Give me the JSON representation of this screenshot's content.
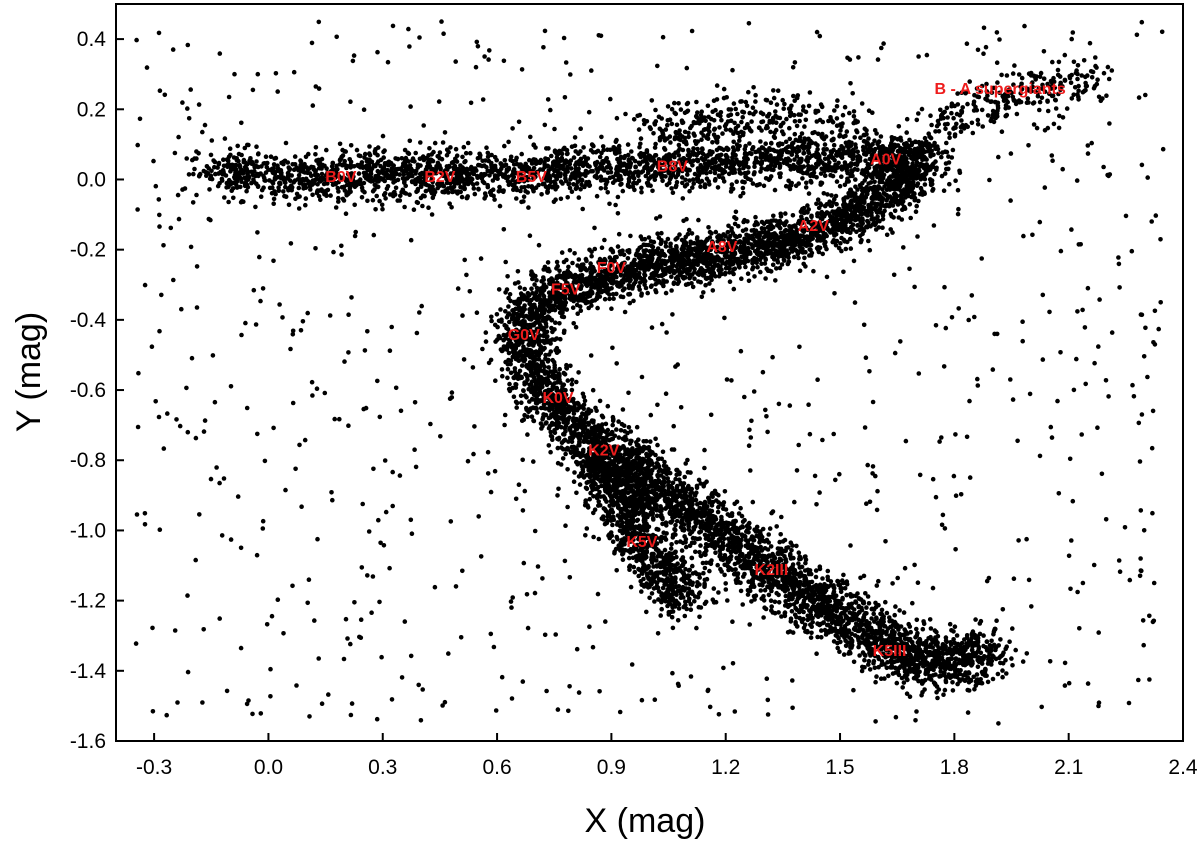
{
  "chart_data": {
    "type": "scatter",
    "title": "",
    "xlabel": "X  (mag)",
    "ylabel": "Y  (mag)",
    "xlim": [
      -0.4,
      2.4
    ],
    "ylim": [
      -1.6,
      0.5
    ],
    "xticks": [
      -0.3,
      0.0,
      0.3,
      0.6,
      0.9,
      1.2,
      1.5,
      1.8,
      2.1,
      2.4
    ],
    "xtick_labels": [
      "-0.3",
      "0.0",
      "0.3",
      "0.6",
      "0.9",
      "1.2",
      "1.5",
      "1.8",
      "2.1",
      "2.4"
    ],
    "yticks": [
      0.4,
      0.2,
      0.0,
      -0.2,
      -0.4,
      -0.6,
      -0.8,
      -1.0,
      -1.2,
      -1.4,
      -1.6
    ],
    "ytick_labels": [
      "0.4",
      "0.2",
      "0.0",
      "-0.2",
      "-0.4",
      "-0.6",
      "-0.8",
      "-1.0",
      "-1.2",
      "-1.4",
      "-1.6"
    ],
    "grid": false,
    "point_color": "#000000",
    "annotation_color": "#ee1c1c",
    "annotations": [
      {
        "text": "B0V",
        "x": 0.19,
        "y": 0.01
      },
      {
        "text": "B2V",
        "x": 0.45,
        "y": 0.01
      },
      {
        "text": "B5V",
        "x": 0.69,
        "y": 0.01
      },
      {
        "text": "B8V",
        "x": 1.06,
        "y": 0.04
      },
      {
        "text": "A0V",
        "x": 1.62,
        "y": 0.06
      },
      {
        "text": "A2V",
        "x": 1.43,
        "y": -0.13
      },
      {
        "text": "A8V",
        "x": 1.19,
        "y": -0.19
      },
      {
        "text": "F0V",
        "x": 0.9,
        "y": -0.25
      },
      {
        "text": "F5V",
        "x": 0.78,
        "y": -0.31
      },
      {
        "text": "G0V",
        "x": 0.67,
        "y": -0.44
      },
      {
        "text": "K0V",
        "x": 0.76,
        "y": -0.62
      },
      {
        "text": "K2V",
        "x": 0.88,
        "y": -0.77
      },
      {
        "text": "K5V",
        "x": 0.98,
        "y": -1.03
      },
      {
        "text": "K2III",
        "x": 1.32,
        "y": -1.11
      },
      {
        "text": "K5III",
        "x": 1.63,
        "y": -1.34
      },
      {
        "text": "B - A supergiants",
        "x": 1.92,
        "y": 0.26
      }
    ],
    "series": [
      {
        "segments": [
          {
            "points": [
              [
                -0.15,
                0.02
              ],
              [
                0.1,
                0.01
              ],
              [
                0.4,
                0.01
              ],
              [
                0.7,
                0.02
              ],
              [
                1.0,
                0.04
              ],
              [
                1.3,
                0.05
              ],
              [
                1.55,
                0.06
              ],
              [
                1.72,
                0.07
              ]
            ],
            "spread_y": 0.035,
            "density": 2400
          },
          {
            "points": [
              [
                1.72,
                0.07
              ],
              [
                1.62,
                -0.05
              ],
              [
                1.5,
                -0.12
              ],
              [
                1.35,
                -0.18
              ],
              [
                1.15,
                -0.22
              ],
              [
                0.95,
                -0.26
              ],
              [
                0.78,
                -0.3
              ],
              [
                0.68,
                -0.38
              ],
              [
                0.67,
                -0.48
              ],
              [
                0.72,
                -0.6
              ],
              [
                0.82,
                -0.72
              ],
              [
                0.9,
                -0.85
              ],
              [
                0.96,
                -0.98
              ],
              [
                1.03,
                -1.1
              ],
              [
                1.1,
                -1.2
              ]
            ],
            "spread_y": 0.035,
            "density": 4200
          },
          {
            "points": [
              [
                0.9,
                -0.78
              ],
              [
                1.05,
                -0.9
              ],
              [
                1.2,
                -1.02
              ],
              [
                1.35,
                -1.14
              ],
              [
                1.5,
                -1.24
              ],
              [
                1.62,
                -1.32
              ],
              [
                1.72,
                -1.38
              ],
              [
                1.82,
                -1.38
              ],
              [
                1.88,
                -1.33
              ]
            ],
            "spread_y": 0.04,
            "density": 2600
          },
          {
            "points": [
              [
                1.72,
                0.12
              ],
              [
                1.85,
                0.2
              ],
              [
                1.98,
                0.25
              ],
              [
                2.1,
                0.27
              ],
              [
                2.18,
                0.29
              ]
            ],
            "spread_y": 0.03,
            "density": 250
          },
          {
            "points": [
              [
                1.0,
                0.14
              ],
              [
                1.3,
                0.17
              ],
              [
                1.5,
                0.15
              ]
            ],
            "spread_y": 0.04,
            "density": 300
          }
        ],
        "scatter_field": {
          "xlim": [
            -0.35,
            2.35
          ],
          "ylim": [
            -1.55,
            0.45
          ],
          "count": 900
        }
      }
    ]
  }
}
